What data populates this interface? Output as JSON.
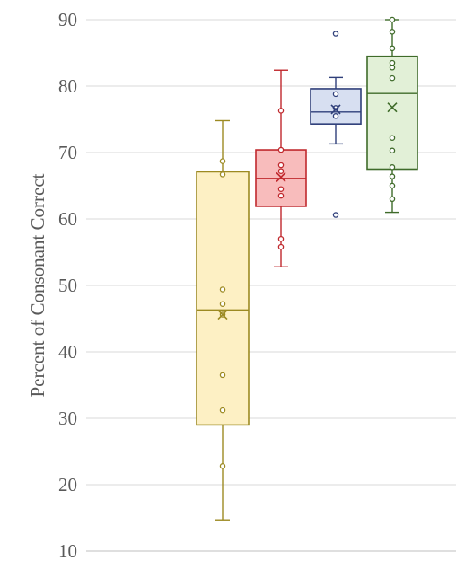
{
  "chart_data": {
    "type": "box",
    "title": "",
    "xlabel": "",
    "ylabel": "Percent of Consonant  Correct",
    "ylim": [
      10,
      90
    ],
    "yticks": [
      10,
      20,
      30,
      40,
      50,
      60,
      70,
      80,
      90
    ],
    "grid": true,
    "legend": "none",
    "series": [
      {
        "color": "#9c8a22",
        "fill": "#fdf0c4",
        "whisker_low": 14.7,
        "q1": 29.0,
        "median": 46.3,
        "mean": 45.6,
        "q3": 67.1,
        "whisker_high": 74.8,
        "points": [
          68.7,
          66.7,
          49.4,
          47.2,
          36.5,
          31.2,
          22.8,
          45.6
        ]
      },
      {
        "color": "#c0282d",
        "fill": "#f8bcbc",
        "whisker_low": 52.8,
        "q1": 61.9,
        "median": 66.1,
        "mean": 66.3,
        "q3": 70.4,
        "whisker_high": 82.4,
        "points": [
          76.3,
          70.4,
          68.1,
          67.2,
          64.5,
          63.5,
          57.0,
          55.8
        ]
      },
      {
        "color": "#2f3f7a",
        "fill": "#d7dff1",
        "whisker_low": 71.3,
        "q1": 74.3,
        "median": 76.1,
        "mean": 76.5,
        "q3": 79.6,
        "whisker_high": 81.3,
        "points": [
          87.9,
          78.8,
          76.7,
          75.5,
          60.6
        ]
      },
      {
        "color": "#3f6b2a",
        "fill": "#e2f0d7",
        "whisker_low": 61.0,
        "q1": 67.5,
        "median": 78.9,
        "mean": 76.8,
        "q3": 84.5,
        "whisker_high": 90.0,
        "points": [
          90.0,
          88.2,
          85.7,
          83.5,
          82.8,
          81.2,
          72.2,
          70.3,
          67.8,
          66.4,
          65.0,
          63.0
        ]
      }
    ]
  }
}
